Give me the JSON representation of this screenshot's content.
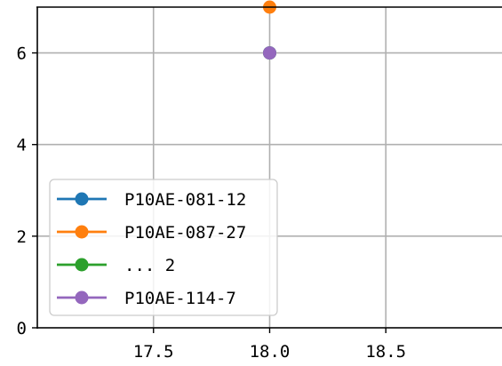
{
  "chart_data": {
    "type": "line",
    "title": "",
    "xlabel": "",
    "ylabel": "",
    "xlim": [
      17.0,
      19.0
    ],
    "ylim": [
      0,
      7
    ],
    "x_ticks": [
      17.5,
      18.0,
      18.5
    ],
    "x_tick_labels": [
      "17.5",
      "18.0",
      "18.5"
    ],
    "y_ticks": [
      0,
      2,
      4,
      6
    ],
    "y_tick_labels": [
      "0",
      "2",
      "4",
      "6"
    ],
    "grid": true,
    "legend_position": "lower-left",
    "series": [
      {
        "name": "P10AE-081-12",
        "color": "#1f77b4",
        "points": [
          {
            "x": 18.0,
            "y": 6
          }
        ]
      },
      {
        "name": "P10AE-087-27",
        "color": "#ff7f0e",
        "points": [
          {
            "x": 18.0,
            "y": 7
          }
        ]
      },
      {
        "name": "... 2",
        "color": "#2ca02c",
        "points": [
          {
            "x": 18.0,
            "y": 6
          }
        ]
      },
      {
        "name": "P10AE-114-7",
        "color": "#9467bd",
        "points": [
          {
            "x": 18.0,
            "y": 6
          }
        ]
      }
    ]
  }
}
